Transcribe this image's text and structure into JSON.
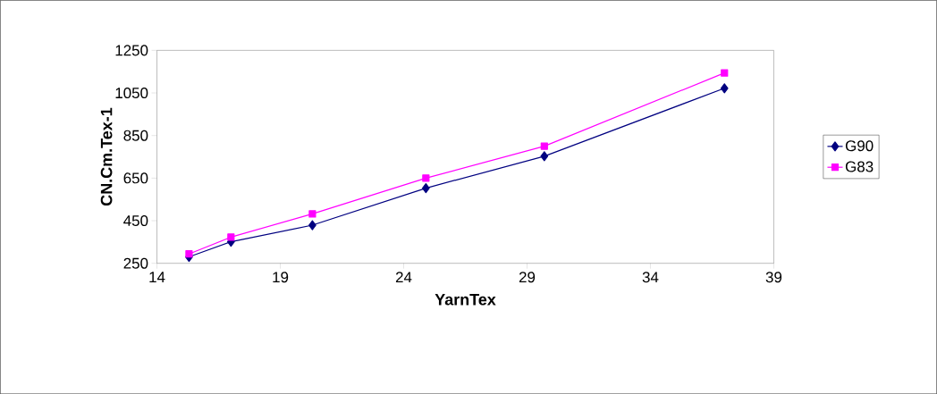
{
  "chart_data": {
    "type": "line",
    "xlabel": "YarnTex",
    "ylabel": "CN.Cm.Tex-1",
    "x": [
      15.3,
      17.0,
      20.3,
      24.9,
      29.7,
      37.0
    ],
    "series": [
      {
        "name": "G90",
        "color": "#000080",
        "marker": "diamond",
        "values": [
          280,
          351,
          429,
          603,
          753,
          1072
        ]
      },
      {
        "name": "G83",
        "color": "#ff00ff",
        "marker": "square",
        "values": [
          294,
          373,
          482,
          650,
          800,
          1144
        ]
      }
    ],
    "xlim": [
      14,
      39
    ],
    "xticks": [
      14,
      19,
      24,
      29,
      34,
      39
    ],
    "ylim": [
      250,
      1250
    ],
    "yticks": [
      250,
      450,
      650,
      850,
      1050,
      1250
    ],
    "grid": false,
    "legend": "right",
    "line_style": "solid"
  }
}
